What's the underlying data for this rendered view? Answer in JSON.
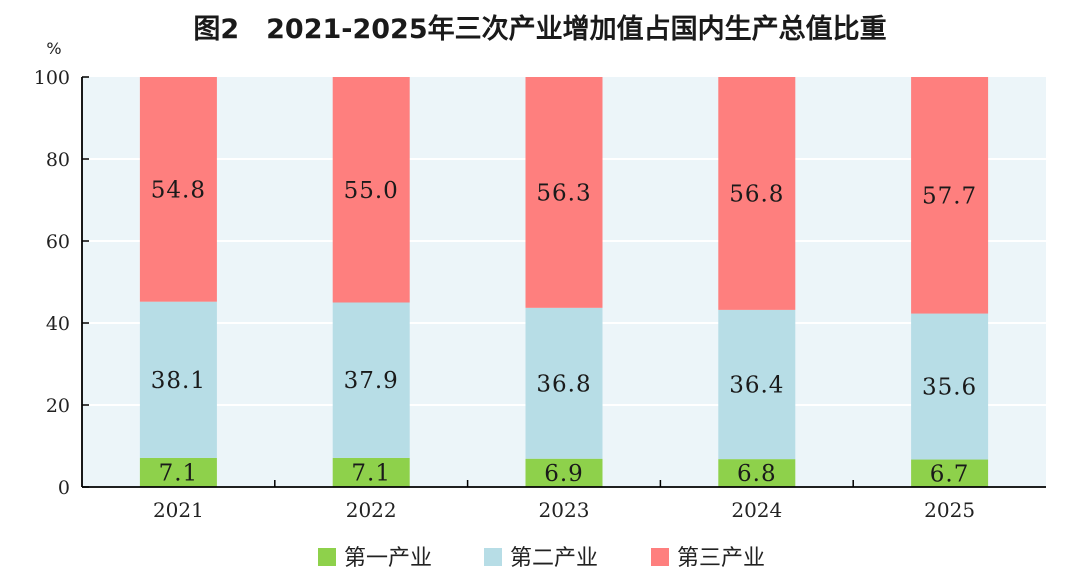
{
  "chart_data": {
    "type": "bar",
    "stacked": true,
    "title": "图2　2021-2025年三次产业增加值占国内生产总值比重",
    "ylabel": "%",
    "ylim": [
      0,
      100
    ],
    "yticks": [
      "0",
      "20",
      "40",
      "60",
      "80",
      "100"
    ],
    "categories": [
      "2021",
      "2022",
      "2023",
      "2024",
      "2025"
    ],
    "series": [
      {
        "name": "第一产业",
        "color": "#8ed14b",
        "values": [
          7.1,
          7.1,
          6.9,
          6.8,
          6.7
        ],
        "labels": [
          "7.1",
          "7.1",
          "6.9",
          "6.8",
          "6.7"
        ]
      },
      {
        "name": "第二产业",
        "color": "#b7dde6",
        "values": [
          38.1,
          37.9,
          36.8,
          36.4,
          35.6
        ],
        "labels": [
          "38.1",
          "37.9",
          "36.8",
          "36.4",
          "35.6"
        ]
      },
      {
        "name": "第三产业",
        "color": "#fe7f7e",
        "values": [
          54.8,
          55.0,
          56.3,
          56.8,
          57.7
        ],
        "labels": [
          "54.8",
          "55.0",
          "56.3",
          "56.8",
          "57.7"
        ]
      }
    ],
    "grid": true,
    "plot_background": "#ecf5f9",
    "legend": "bottom"
  }
}
